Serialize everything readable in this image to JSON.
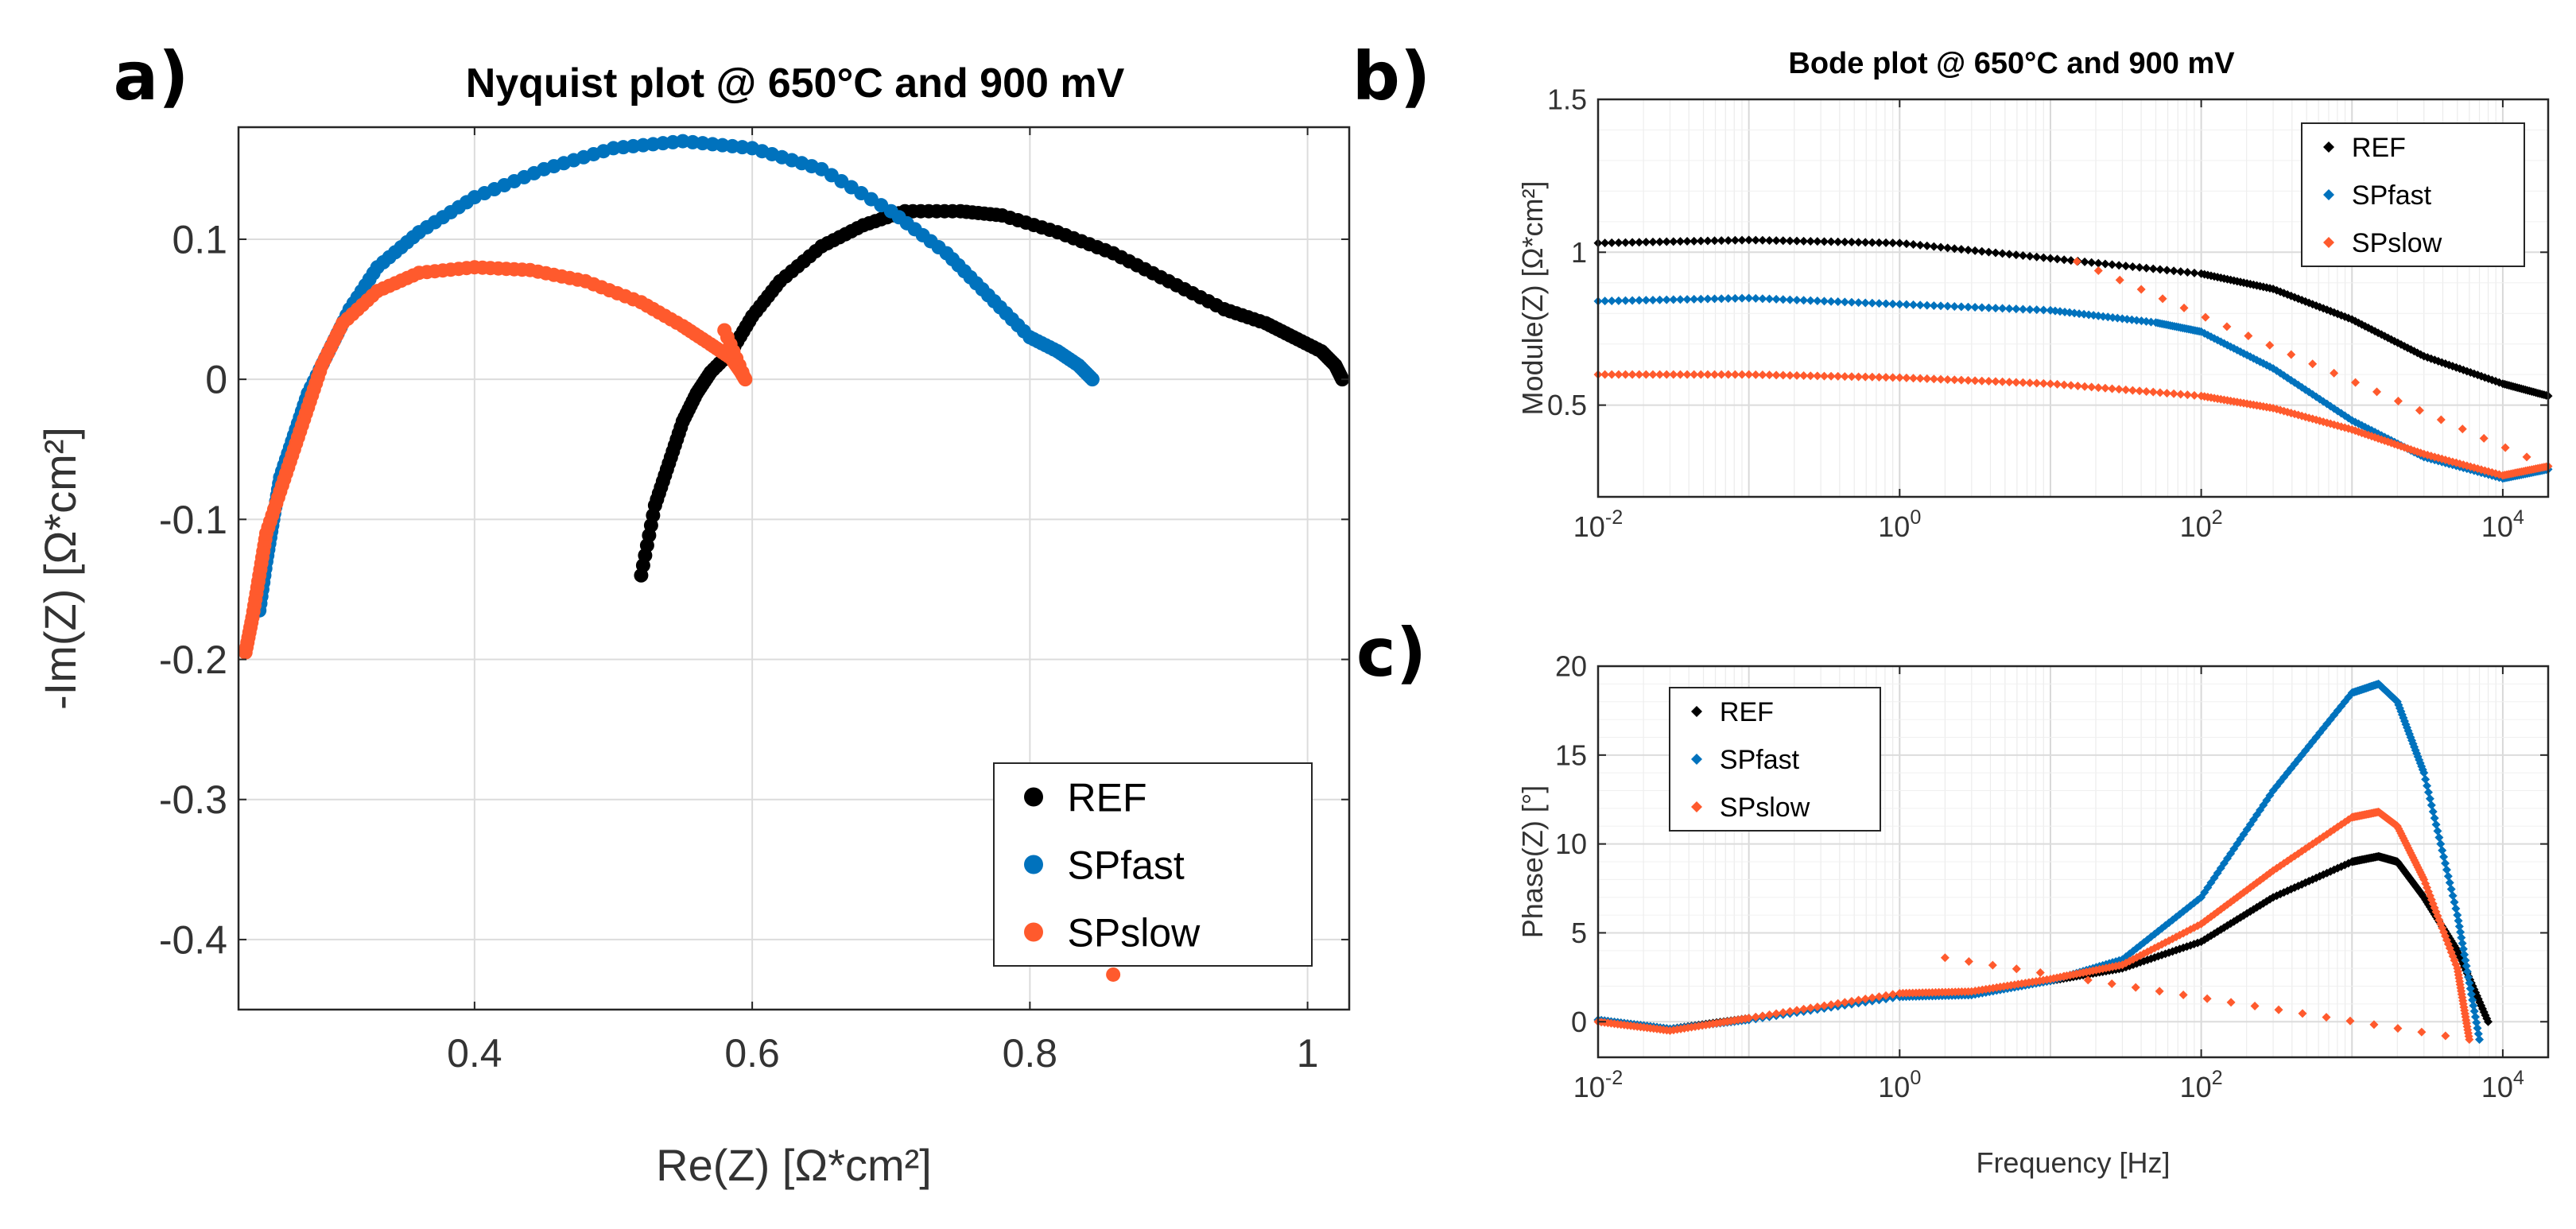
{
  "series_colors": {
    "REF": "#000000",
    "SPfast": "#0072BD",
    "SPslow": "#FF5A2D"
  },
  "chart_data": [
    {
      "id": "nyquist",
      "type": "scatter",
      "panel_label": "a)",
      "title": "Nyquist plot @ 650°C and 900 mV",
      "xlabel": "Re(Z) [Ω*cm²]",
      "ylabel": "-Im(Z) [Ω*cm²]",
      "xlim": [
        0.23,
        1.03
      ],
      "ylim": [
        -0.45,
        0.18
      ],
      "xticks": [
        0.4,
        0.6,
        0.8,
        1
      ],
      "xtick_labels": [
        "0.4",
        "0.6",
        "0.8",
        "1"
      ],
      "yticks": [
        -0.4,
        -0.3,
        -0.2,
        -0.1,
        0,
        0.1
      ],
      "ytick_labels": [
        "-0.4",
        "-0.3",
        "-0.2",
        "-0.1",
        "0",
        "0.1"
      ],
      "grid": true,
      "legend": {
        "position": "bottom-right",
        "entries": [
          "REF",
          "SPfast",
          "SPslow"
        ]
      },
      "series": [
        {
          "name": "REF",
          "points": [
            [
              0.52,
              -0.14
            ],
            [
              0.53,
              -0.09
            ],
            [
              0.54,
              -0.06
            ],
            [
              0.55,
              -0.03
            ],
            [
              0.56,
              -0.01
            ],
            [
              0.57,
              0.005
            ],
            [
              0.585,
              0.02
            ],
            [
              0.6,
              0.045
            ],
            [
              0.62,
              0.07
            ],
            [
              0.65,
              0.095
            ],
            [
              0.68,
              0.11
            ],
            [
              0.71,
              0.12
            ],
            [
              0.75,
              0.12
            ],
            [
              0.78,
              0.117
            ],
            [
              0.82,
              0.105
            ],
            [
              0.86,
              0.09
            ],
            [
              0.9,
              0.07
            ],
            [
              0.94,
              0.05
            ],
            [
              0.97,
              0.04
            ],
            [
              0.99,
              0.03
            ],
            [
              1.01,
              0.02
            ],
            [
              1.02,
              0.01
            ],
            [
              1.025,
              0.0
            ]
          ]
        },
        {
          "name": "SPfast",
          "points": [
            [
              0.245,
              -0.165
            ],
            [
              0.25,
              -0.13
            ],
            [
              0.255,
              -0.1
            ],
            [
              0.26,
              -0.07
            ],
            [
              0.27,
              -0.04
            ],
            [
              0.28,
              -0.01
            ],
            [
              0.295,
              0.02
            ],
            [
              0.31,
              0.05
            ],
            [
              0.33,
              0.08
            ],
            [
              0.36,
              0.105
            ],
            [
              0.4,
              0.13
            ],
            [
              0.45,
              0.15
            ],
            [
              0.5,
              0.165
            ],
            [
              0.55,
              0.17
            ],
            [
              0.6,
              0.165
            ],
            [
              0.65,
              0.15
            ],
            [
              0.7,
              0.12
            ],
            [
              0.74,
              0.09
            ],
            [
              0.77,
              0.06
            ],
            [
              0.8,
              0.03
            ],
            [
              0.82,
              0.02
            ],
            [
              0.835,
              0.01
            ],
            [
              0.845,
              0.0
            ]
          ]
        },
        {
          "name": "SPslow",
          "points": [
            [
              0.235,
              -0.195
            ],
            [
              0.24,
              -0.17
            ],
            [
              0.245,
              -0.14
            ],
            [
              0.25,
              -0.11
            ],
            [
              0.26,
              -0.08
            ],
            [
              0.27,
              -0.05
            ],
            [
              0.28,
              -0.02
            ],
            [
              0.29,
              0.01
            ],
            [
              0.305,
              0.04
            ],
            [
              0.33,
              0.063
            ],
            [
              0.36,
              0.076
            ],
            [
              0.4,
              0.08
            ],
            [
              0.44,
              0.078
            ],
            [
              0.48,
              0.07
            ],
            [
              0.52,
              0.055
            ],
            [
              0.55,
              0.038
            ],
            [
              0.57,
              0.025
            ],
            [
              0.585,
              0.015
            ],
            [
              0.592,
              0.005
            ],
            [
              0.595,
              0.0
            ],
            [
              0.58,
              0.035
            ],
            [
              0.86,
              -0.425
            ]
          ]
        }
      ]
    },
    {
      "id": "bode-module",
      "type": "scatter",
      "panel_label": "b)",
      "title": "Bode plot @ 650°C and 900 mV",
      "xlabel": "",
      "ylabel": "Module(Z) [Ω*cm²]",
      "xscale": "log",
      "xlim": [
        0.01,
        20000
      ],
      "ylim": [
        0.2,
        1.5
      ],
      "xticks": [
        0.01,
        1,
        100,
        10000
      ],
      "xtick_labels": [
        [
          "10",
          "-2"
        ],
        [
          "10",
          "0"
        ],
        [
          "10",
          "2"
        ],
        [
          "10",
          "4"
        ]
      ],
      "yticks": [
        0.5,
        1,
        1.5
      ],
      "ytick_labels": [
        "0.5",
        "1",
        "1.5"
      ],
      "grid": true,
      "legend": {
        "position": "top-right",
        "entries": [
          "REF",
          "SPfast",
          "SPslow"
        ]
      },
      "series": [
        {
          "name": "REF",
          "points": [
            [
              0.01,
              1.03
            ],
            [
              0.1,
              1.04
            ],
            [
              1,
              1.03
            ],
            [
              10,
              0.98
            ],
            [
              100,
              0.93
            ],
            [
              300,
              0.88
            ],
            [
              1000,
              0.78
            ],
            [
              3000,
              0.66
            ],
            [
              10000,
              0.57
            ],
            [
              20000,
              0.53
            ]
          ]
        },
        {
          "name": "SPfast",
          "points": [
            [
              0.01,
              0.84
            ],
            [
              0.1,
              0.85
            ],
            [
              1,
              0.83
            ],
            [
              10,
              0.81
            ],
            [
              50,
              0.77
            ],
            [
              100,
              0.74
            ],
            [
              300,
              0.62
            ],
            [
              1000,
              0.45
            ],
            [
              3000,
              0.33
            ],
            [
              10000,
              0.26
            ],
            [
              20000,
              0.29
            ]
          ]
        },
        {
          "name": "SPslow",
          "points": [
            [
              0.01,
              0.6
            ],
            [
              0.1,
              0.6
            ],
            [
              1,
              0.59
            ],
            [
              10,
              0.57
            ],
            [
              100,
              0.53
            ],
            [
              300,
              0.49
            ],
            [
              1000,
              0.42
            ],
            [
              3000,
              0.34
            ],
            [
              10000,
              0.27
            ],
            [
              20000,
              0.3
            ],
            [
              15,
              0.97
            ]
          ]
        }
      ]
    },
    {
      "id": "bode-phase",
      "type": "scatter",
      "panel_label": "c)",
      "title": "",
      "xlabel": "Frequency [Hz]",
      "ylabel": "Phase(Z) [°]",
      "xscale": "log",
      "xlim": [
        0.01,
        20000
      ],
      "ylim": [
        -2,
        20
      ],
      "xticks": [
        0.01,
        1,
        100,
        10000
      ],
      "xtick_labels": [
        [
          "10",
          "-2"
        ],
        [
          "10",
          "0"
        ],
        [
          "10",
          "2"
        ],
        [
          "10",
          "4"
        ]
      ],
      "yticks": [
        0,
        5,
        10,
        15,
        20
      ],
      "ytick_labels": [
        "0",
        "5",
        "10",
        "15",
        "20"
      ],
      "grid": true,
      "legend": {
        "position": "top-left",
        "entries": [
          "REF",
          "SPfast",
          "SPslow"
        ]
      },
      "series": [
        {
          "name": "REF",
          "points": [
            [
              0.01,
              0.1
            ],
            [
              0.03,
              -0.4
            ],
            [
              0.1,
              0.2
            ],
            [
              1,
              1.5
            ],
            [
              3,
              1.6
            ],
            [
              10,
              2.3
            ],
            [
              30,
              3.0
            ],
            [
              100,
              4.5
            ],
            [
              300,
              7.0
            ],
            [
              1000,
              9.0
            ],
            [
              1500,
              9.3
            ],
            [
              2000,
              9.0
            ],
            [
              3000,
              7.0
            ],
            [
              5000,
              4.0
            ],
            [
              8000,
              0.0
            ]
          ]
        },
        {
          "name": "SPfast",
          "points": [
            [
              0.01,
              0.1
            ],
            [
              0.03,
              -0.4
            ],
            [
              0.1,
              0.1
            ],
            [
              1,
              1.4
            ],
            [
              3,
              1.5
            ],
            [
              10,
              2.3
            ],
            [
              30,
              3.5
            ],
            [
              100,
              7.0
            ],
            [
              300,
              13.0
            ],
            [
              1000,
              18.5
            ],
            [
              1500,
              19.0
            ],
            [
              2000,
              18.0
            ],
            [
              3000,
              14.0
            ],
            [
              5000,
              6.0
            ],
            [
              7000,
              -1.0
            ]
          ]
        },
        {
          "name": "SPslow",
          "points": [
            [
              0.01,
              0.0
            ],
            [
              0.03,
              -0.5
            ],
            [
              0.1,
              0.2
            ],
            [
              1,
              1.6
            ],
            [
              3,
              1.7
            ],
            [
              10,
              2.4
            ],
            [
              30,
              3.2
            ],
            [
              100,
              5.5
            ],
            [
              300,
              8.5
            ],
            [
              1000,
              11.5
            ],
            [
              1500,
              11.8
            ],
            [
              2000,
              11.0
            ],
            [
              3000,
              8.0
            ],
            [
              5000,
              3.0
            ],
            [
              6000,
              -1.0
            ],
            [
              2,
              3.6
            ]
          ]
        }
      ]
    }
  ]
}
